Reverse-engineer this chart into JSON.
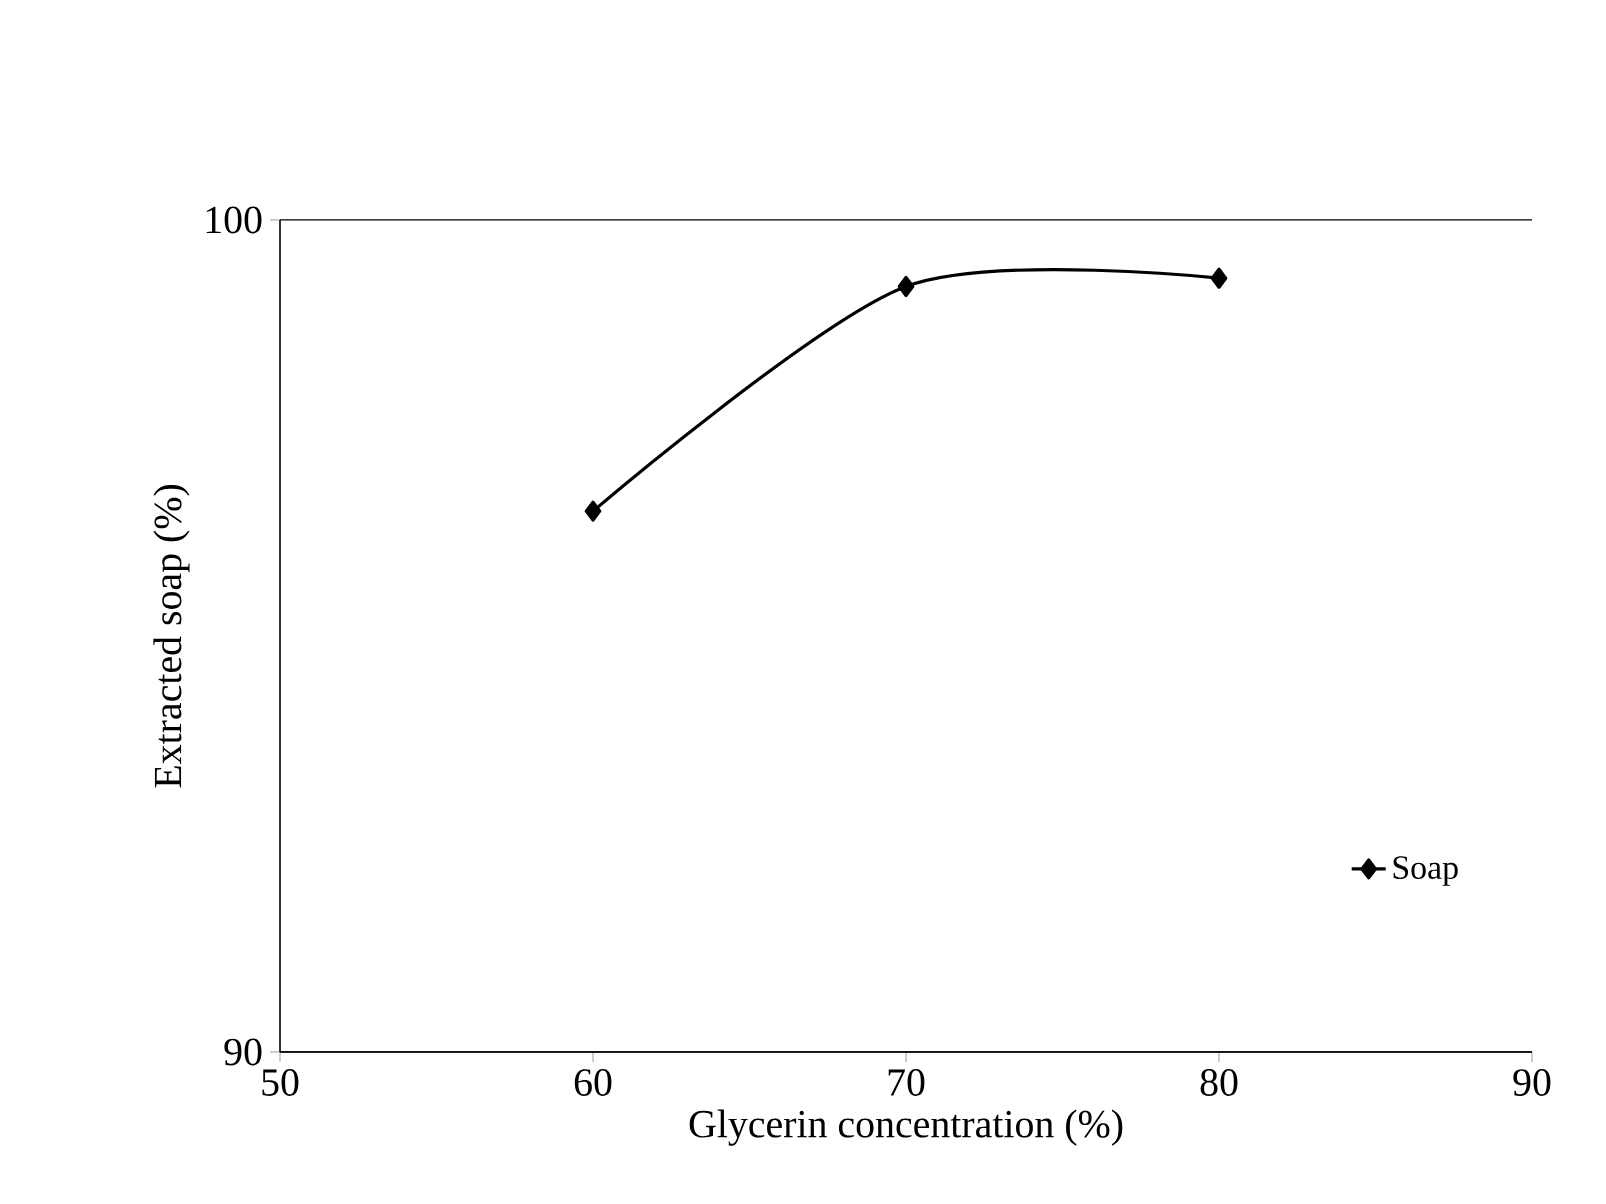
{
  "chart_data": {
    "type": "line",
    "xlabel": "Glycerin concentration (%)",
    "ylabel": "Extracted soap (%)",
    "x": [
      60,
      70,
      80
    ],
    "series": [
      {
        "name": "Soap",
        "color": "#000000",
        "values": [
          96.5,
          99.2,
          99.3
        ]
      }
    ],
    "xlim": [
      50,
      90
    ],
    "xticks": [
      50,
      60,
      70,
      80,
      90
    ],
    "ylim": [
      90,
      100
    ],
    "yticks": [
      90,
      100
    ],
    "grid": "y",
    "legend": "bottom right",
    "marker": "diamond",
    "line_style": "solid"
  }
}
